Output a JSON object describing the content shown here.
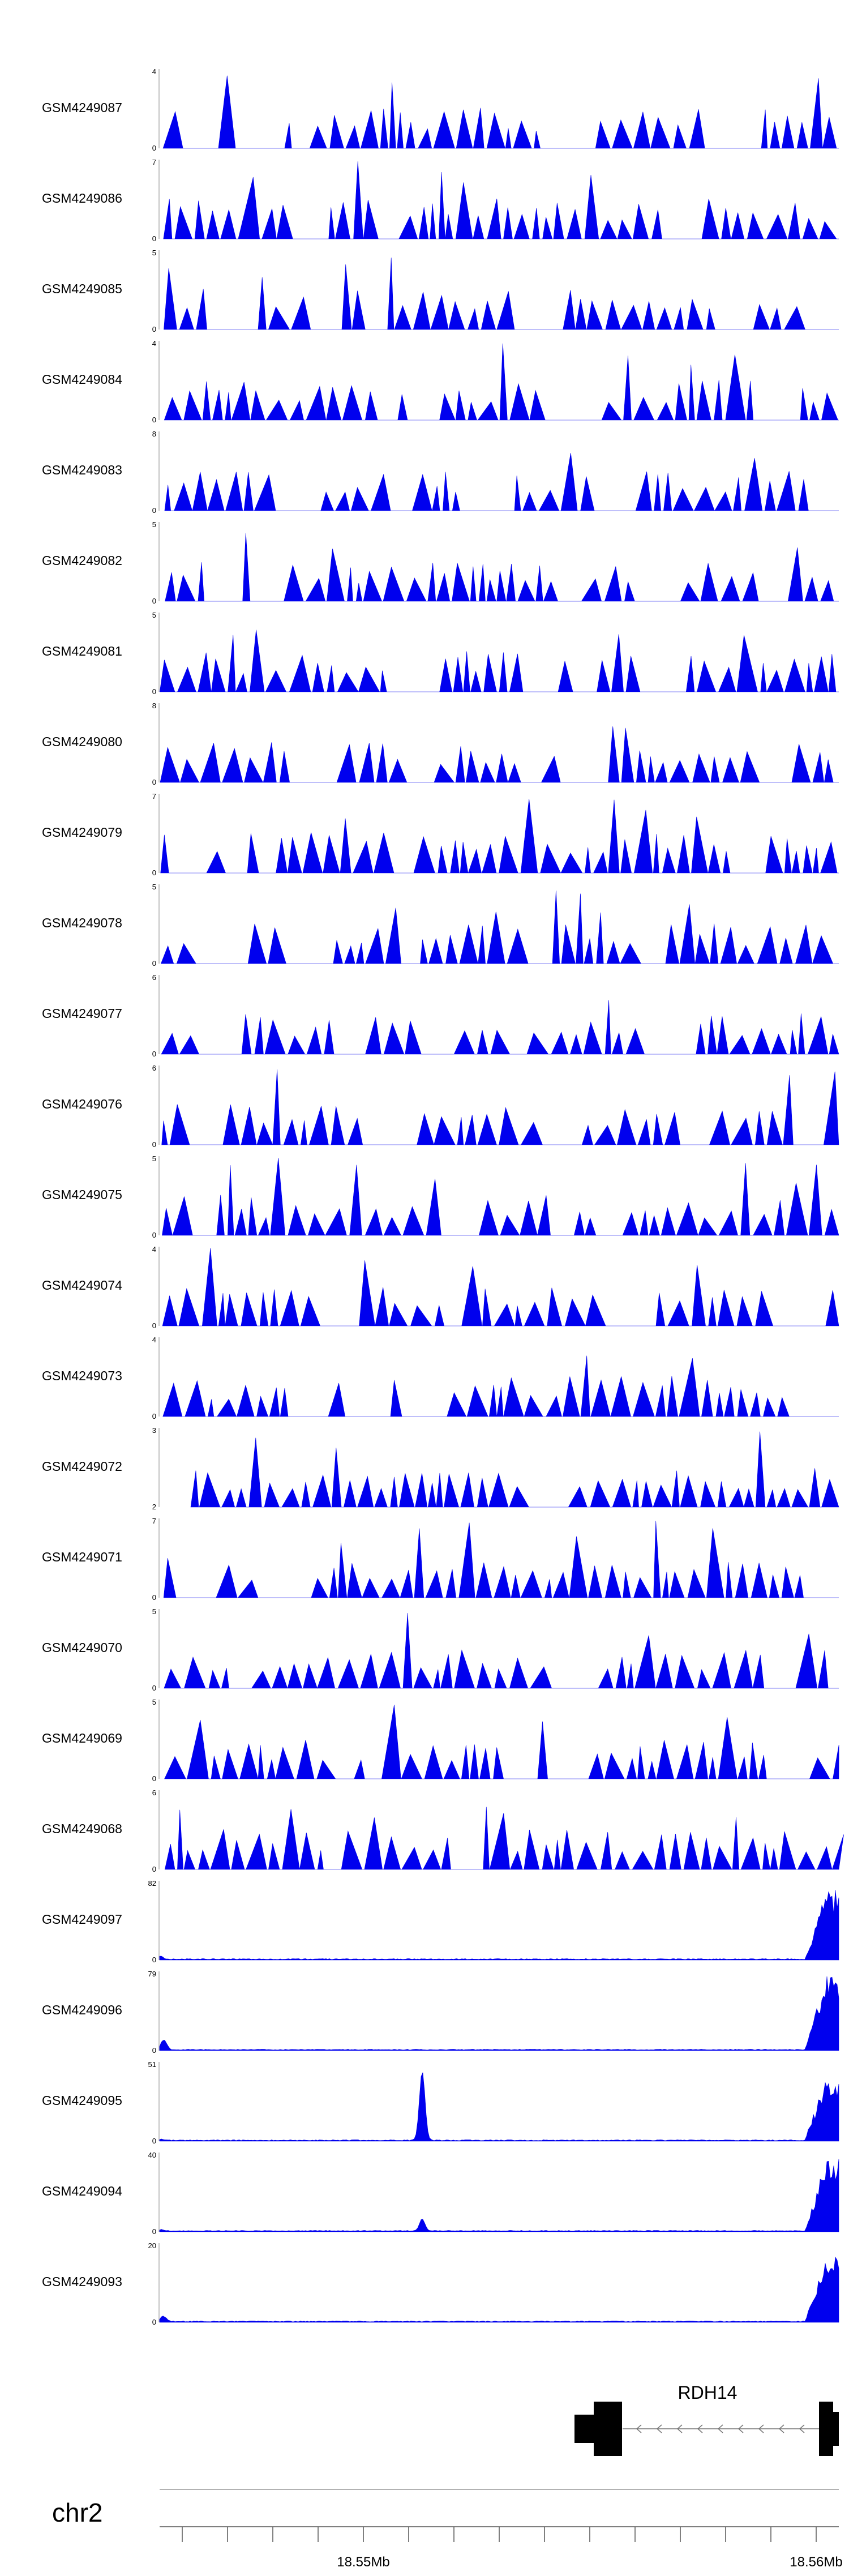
{
  "chart_data": {
    "type": "area",
    "title": "",
    "xlabel": "",
    "ylabel": "",
    "color": "#0000ee",
    "x_axis": {
      "chromosome": "chr2",
      "tick_labels": [
        "18.55Mb",
        "18.56Mb"
      ],
      "tick_label_values": [
        18.55,
        18.56
      ],
      "xlim": [
        18.5455,
        18.5605
      ]
    },
    "gene": {
      "name": "RDH14",
      "strand": "-"
    },
    "tracks": [
      {
        "name": "GSM4249087",
        "ymax": "4",
        "ymin": "0",
        "style": "sparse"
      },
      {
        "name": "GSM4249086",
        "ymax": "7",
        "ymin": "0",
        "style": "sparse"
      },
      {
        "name": "GSM4249085",
        "ymax": "5",
        "ymin": "0",
        "style": "sparse"
      },
      {
        "name": "GSM4249084",
        "ymax": "4",
        "ymin": "0",
        "style": "sparse"
      },
      {
        "name": "GSM4249083",
        "ymax": "8",
        "ymin": "0",
        "style": "sparse"
      },
      {
        "name": "GSM4249082",
        "ymax": "5",
        "ymin": "0",
        "style": "sparse"
      },
      {
        "name": "GSM4249081",
        "ymax": "5",
        "ymin": "0",
        "style": "sparse"
      },
      {
        "name": "GSM4249080",
        "ymax": "8",
        "ymin": "0",
        "style": "sparse"
      },
      {
        "name": "GSM4249079",
        "ymax": "7",
        "ymin": "0",
        "style": "sparse"
      },
      {
        "name": "GSM4249078",
        "ymax": "5",
        "ymin": "0",
        "style": "sparse"
      },
      {
        "name": "GSM4249077",
        "ymax": "6",
        "ymin": "0",
        "style": "sparse"
      },
      {
        "name": "GSM4249076",
        "ymax": "6",
        "ymin": "0",
        "style": "sparse"
      },
      {
        "name": "GSM4249075",
        "ymax": "5",
        "ymin": "0",
        "style": "sparse"
      },
      {
        "name": "GSM4249074",
        "ymax": "4",
        "ymin": "0",
        "style": "sparse"
      },
      {
        "name": "GSM4249073",
        "ymax": "4",
        "ymin": "0",
        "style": "sparse"
      },
      {
        "name": "GSM4249072",
        "ymax": "3",
        "ymin": "2",
        "style": "sparse"
      },
      {
        "name": "GSM4249071",
        "ymax": "7",
        "ymin": "0",
        "style": "sparse"
      },
      {
        "name": "GSM4249070",
        "ymax": "5",
        "ymin": "0",
        "style": "sparse"
      },
      {
        "name": "GSM4249069",
        "ymax": "5",
        "ymin": "0",
        "style": "sparse"
      },
      {
        "name": "GSM4249068",
        "ymax": "6",
        "ymin": "0",
        "style": "sparse"
      },
      {
        "name": "GSM4249097",
        "ymax": "82",
        "ymin": "0",
        "style": "dense",
        "minor_peak_x": 18.5455,
        "minor_peak_level": 0.02,
        "end_peak_level": 0.88
      },
      {
        "name": "GSM4249096",
        "ymax": "79",
        "ymin": "0",
        "style": "dense",
        "minor_peak_x": 18.5456,
        "minor_peak_level": 0.12,
        "end_peak_level": 0.95
      },
      {
        "name": "GSM4249095",
        "ymax": "51",
        "ymin": "0",
        "style": "dense",
        "minor_peak_x": 18.5513,
        "minor_peak_level": 0.88,
        "end_peak_level": 0.85
      },
      {
        "name": "GSM4249094",
        "ymax": "40",
        "ymin": "0",
        "style": "dense",
        "minor_peak_x": 18.5513,
        "minor_peak_level": 0.15,
        "end_peak_level": 0.92
      },
      {
        "name": "GSM4249093",
        "ymax": "20",
        "ymin": "0",
        "style": "dense",
        "minor_peak_x": 18.5456,
        "minor_peak_level": 0.06,
        "end_peak_level": 0.85
      }
    ]
  }
}
